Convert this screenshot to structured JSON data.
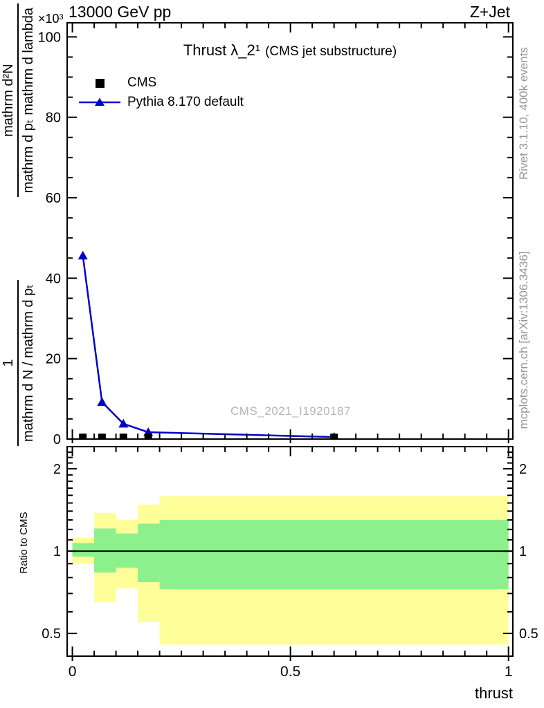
{
  "header": {
    "beam_energy": "13000 GeV pp",
    "process_label": "Z+Jet"
  },
  "main_panel": {
    "scale_multiplier": "×10³",
    "title": "Thrust λ_2¹",
    "title_note": "(CMS jet substructure)",
    "watermark": "CMS_2021_I1920187",
    "ylabel": {
      "frac1_num": "1",
      "frac1_den": "mathrm d N / mathrm d pₜ",
      "frac2_num": "mathrm d²N",
      "frac2_den": "mathrm d pₜ mathrm d lambda"
    },
    "legend": [
      {
        "label": "CMS",
        "marker": "black-square"
      },
      {
        "label": "Pythia 8.170 default",
        "marker": "blue-line-triangle"
      }
    ]
  },
  "ratio_panel": {
    "ylabel": "Ratio to CMS"
  },
  "xaxis": {
    "label": "thrust"
  },
  "side_notes": {
    "top_right": "Rivet 3.1.10,  400k events",
    "bottom_right": "mcplots.cern.ch [arXiv:1306.3436]"
  },
  "colors": {
    "mc_blue": "#0000cd",
    "data_black": "#000000",
    "band_yellow": "#ffff99",
    "band_green": "#8cf08c",
    "note_gray": "#969696",
    "watermark_gray": "#b5b5b5",
    "axis_black": "#000000"
  },
  "chart_data": {
    "type": "line",
    "title": "Thrust λ_2¹ (CMS jet substructure)",
    "xlabel": "thrust",
    "ylabel": "1/(dN/dpₜ) · d²N/(dpₜ dlambda)",
    "top_left_label": "13000 GeV pp",
    "top_right_label": "Z+Jet",
    "main": {
      "xlim": [
        0,
        1
      ],
      "ylim": [
        0,
        103.5
      ],
      "y_unit_multiplier": 1000,
      "y_unit_label": "×10³",
      "yticks": [
        0,
        20,
        40,
        60,
        80,
        100
      ],
      "y_minor_step": 5,
      "xticks": [
        0,
        0.5,
        1
      ],
      "xtick_labels": [
        "0",
        "0.5",
        "1"
      ],
      "x_minor_step": 0.05,
      "grid": false,
      "legend_position": "top-left",
      "series": [
        {
          "name": "CMS",
          "marker": "square",
          "color": "#000000",
          "draw": "markers",
          "x": [
            0.024,
            0.068,
            0.117,
            0.174,
            0.6
          ],
          "y": [
            0.4,
            0.4,
            0.4,
            0.4,
            0.4
          ]
        },
        {
          "name": "Pythia 8.170 default",
          "marker": "triangle",
          "color": "#0000cd",
          "draw": "line+markers",
          "x": [
            0.024,
            0.068,
            0.117,
            0.174,
            0.6
          ],
          "y": [
            45.6,
            9.2,
            3.8,
            1.7,
            0.5
          ]
        }
      ]
    },
    "ratio": {
      "scale": "log",
      "ylim": [
        0.413,
        2.41
      ],
      "yticks": [
        0.5,
        1,
        2
      ],
      "ytick_labels": [
        "0.5",
        "1",
        "2"
      ],
      "yticks_minor": [
        0.4,
        0.6,
        0.7,
        0.8,
        0.9,
        1.1,
        1.2,
        1.3,
        1.4,
        1.5,
        1.6,
        1.7,
        1.8,
        1.9,
        2.1,
        2.2,
        2.3
      ],
      "reference_line": 1,
      "bin_edges": [
        0,
        0.05,
        0.1,
        0.15,
        0.2,
        1.0
      ],
      "bands": {
        "yellow": {
          "color": "#ffff99",
          "lo": [
            0.9,
            0.65,
            0.73,
            0.55,
            0.455
          ],
          "hi": [
            1.12,
            1.38,
            1.3,
            1.48,
            1.59
          ]
        },
        "green": {
          "color": "#8cf08c",
          "lo": [
            0.955,
            0.835,
            0.87,
            0.77,
            0.726
          ],
          "hi": [
            1.07,
            1.21,
            1.16,
            1.26,
            1.3
          ]
        }
      }
    }
  }
}
